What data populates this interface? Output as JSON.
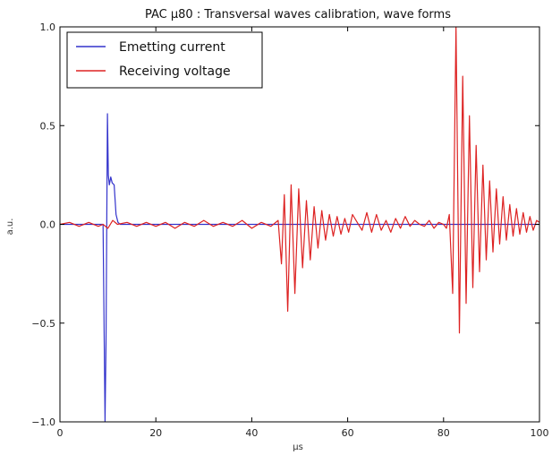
{
  "chart_data": {
    "type": "line",
    "title": "PAC µ80 : Transversal waves calibration, wave forms",
    "xlabel": "µs",
    "ylabel": "a.u.",
    "xlim": [
      0,
      100
    ],
    "ylim": [
      -1.0,
      1.0
    ],
    "x_ticks": [
      0,
      20,
      40,
      60,
      80,
      100
    ],
    "y_ticks": [
      -1.0,
      -0.5,
      0.0,
      0.5,
      1.0
    ],
    "x_tick_labels": [
      "0",
      "20",
      "40",
      "60",
      "80",
      "100"
    ],
    "y_tick_labels": [
      "−1.0",
      "−0.5",
      "0.0",
      "0.5",
      "1.0"
    ],
    "grid": false,
    "legend_position": "top-left",
    "series": [
      {
        "name": "Emetting current",
        "color": "#3333cc",
        "x": [
          0,
          9.0,
          9.4,
          9.6,
          9.9,
          10.1,
          10.3,
          10.6,
          10.9,
          11.3,
          11.7,
          12.1,
          12.6,
          13.2,
          20,
          40,
          60,
          80,
          100
        ],
        "y": [
          0,
          0,
          -1.0,
          -0.6,
          0.56,
          0.25,
          0.2,
          0.24,
          0.21,
          0.2,
          0.05,
          0.01,
          0,
          0,
          0,
          0,
          0,
          0,
          0
        ]
      },
      {
        "name": "Receiving voltage",
        "color": "#dd2222",
        "x": [
          0,
          2,
          4,
          6,
          8,
          9,
          10,
          11,
          12,
          14,
          16,
          18,
          20,
          22,
          24,
          26,
          28,
          30,
          32,
          34,
          36,
          38,
          40,
          42,
          44,
          45.5,
          46.2,
          46.8,
          47.5,
          48.2,
          49,
          49.8,
          50.6,
          51.4,
          52.2,
          53,
          53.8,
          54.6,
          55.4,
          56.2,
          57,
          57.8,
          58.6,
          59.4,
          60.2,
          61,
          62,
          63,
          64,
          65,
          66,
          67,
          68,
          69,
          70,
          71,
          72,
          73,
          74,
          75,
          76,
          77,
          78,
          79,
          80,
          80.6,
          81.2,
          81.9,
          82.6,
          83.3,
          84,
          84.7,
          85.4,
          86.1,
          86.8,
          87.5,
          88.2,
          88.9,
          89.6,
          90.3,
          91,
          91.7,
          92.4,
          93.1,
          93.8,
          94.5,
          95.2,
          95.9,
          96.6,
          97.3,
          98,
          98.7,
          99.4,
          100
        ],
        "y": [
          0,
          0.01,
          -0.01,
          0.01,
          -0.01,
          0,
          -0.02,
          0.02,
          0,
          0.01,
          -0.01,
          0.01,
          -0.01,
          0.01,
          -0.02,
          0.01,
          -0.01,
          0.02,
          -0.01,
          0.01,
          -0.01,
          0.02,
          -0.02,
          0.01,
          -0.01,
          0.02,
          -0.2,
          0.15,
          -0.44,
          0.2,
          -0.35,
          0.18,
          -0.22,
          0.12,
          -0.18,
          0.09,
          -0.12,
          0.07,
          -0.08,
          0.05,
          -0.06,
          0.04,
          -0.05,
          0.03,
          -0.04,
          0.05,
          0.01,
          -0.03,
          0.06,
          -0.04,
          0.05,
          -0.03,
          0.02,
          -0.04,
          0.03,
          -0.02,
          0.04,
          -0.01,
          0.02,
          0.0,
          -0.01,
          0.02,
          -0.02,
          0.01,
          0.0,
          -0.02,
          0.05,
          -0.35,
          1.0,
          -0.55,
          0.75,
          -0.4,
          0.55,
          -0.32,
          0.4,
          -0.24,
          0.3,
          -0.18,
          0.22,
          -0.14,
          0.18,
          -0.1,
          0.14,
          -0.08,
          0.1,
          -0.06,
          0.08,
          -0.05,
          0.06,
          -0.04,
          0.04,
          -0.03,
          0.02,
          0.01
        ]
      }
    ]
  }
}
